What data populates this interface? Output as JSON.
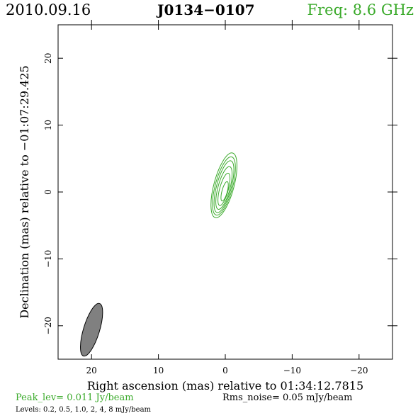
{
  "header": {
    "date": "2010.09.16",
    "source": "J0134−0107",
    "freq": "Freq:  8.6 GHz"
  },
  "footer": {
    "peak": "Peak_lev=  0.011 Jy/beam",
    "rms": "Rms_noise= 0.05 mJy/beam",
    "levels": "Levels: 0.2,  0.5,  1.0,    2,    4,    8  mJy/beam"
  },
  "colors": {
    "contour": "#3aaa2a",
    "beam_fill": "#808080",
    "title_accent": "#3aaa2a"
  },
  "chart_data": {
    "type": "contour",
    "xlabel": "Right ascension (mas) relative to 01:34:12.7815",
    "ylabel": "Declination (mas) relative to −01:07:29.425",
    "xlim": [
      25,
      -25
    ],
    "ylim": [
      -25,
      25
    ],
    "x_ticks": [
      20,
      10,
      0,
      -10,
      -20
    ],
    "x_tick_labels": [
      "20",
      "10",
      "0",
      "−10",
      "−20"
    ],
    "y_ticks": [
      20,
      10,
      0,
      -10,
      -20
    ],
    "y_tick_labels": [
      "20",
      "10",
      "0",
      "−10",
      "−20"
    ],
    "levels_mjy_per_beam": [
      0.2,
      0.5,
      1.0,
      2,
      4,
      8
    ],
    "peak_jy_per_beam": 0.011,
    "rms_noise_mjy_per_beam": 0.05,
    "source_center": [
      0,
      0
    ],
    "contours": [
      {
        "level": 0.2,
        "x": 0.2,
        "y": 1.0,
        "major": 10.0,
        "minor": 3.0,
        "pa_deg": 15
      },
      {
        "level": 0.5,
        "x": 0.2,
        "y": 0.9,
        "major": 9.0,
        "minor": 2.6,
        "pa_deg": 15
      },
      {
        "level": 1.0,
        "x": 0.2,
        "y": 0.8,
        "major": 8.0,
        "minor": 2.2,
        "pa_deg": 15
      },
      {
        "level": 2,
        "x": 0.2,
        "y": 0.6,
        "major": 6.6,
        "minor": 1.8,
        "pa_deg": 15
      },
      {
        "level": 4,
        "x": 0.2,
        "y": 0.4,
        "major": 5.0,
        "minor": 1.3,
        "pa_deg": 15
      },
      {
        "level": 8,
        "x": 0.1,
        "y": 0.1,
        "major": 3.0,
        "minor": 0.8,
        "pa_deg": 15
      }
    ],
    "beam": {
      "x": 20.0,
      "y": -20.6,
      "major": 8.2,
      "minor": 2.4,
      "pa_deg": 17
    },
    "grid": false
  }
}
